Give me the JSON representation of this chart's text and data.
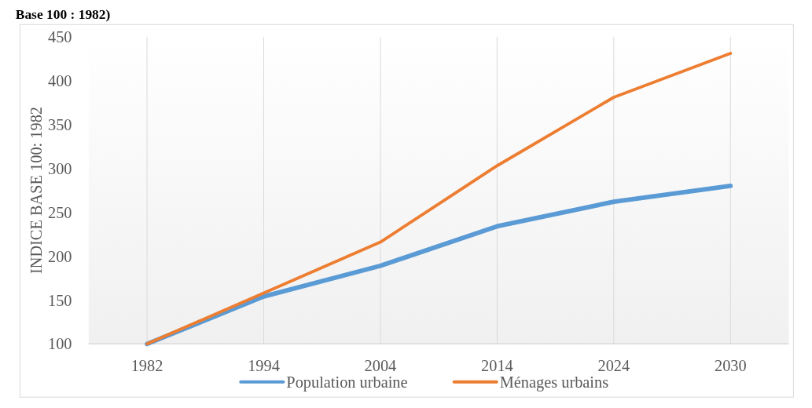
{
  "chart_data": {
    "type": "line",
    "title": "Base 100 : 1982)",
    "ylabel": "INDICE BASE 100: 1982",
    "categories": [
      "1982",
      "1994",
      "2004",
      "2014",
      "2024",
      "2030"
    ],
    "series": [
      {
        "name": "Population urbaine",
        "color": "#5b9bd5",
        "values": [
          100,
          154,
          189,
          234,
          262,
          280
        ]
      },
      {
        "name": "Ménages urbains",
        "color": "#ed7d31",
        "values": [
          100,
          158,
          216,
          303,
          381,
          431
        ]
      }
    ],
    "ylim": [
      100,
      450
    ],
    "yticks": [
      100,
      150,
      200,
      250,
      300,
      350,
      400,
      450
    ],
    "grid": "x",
    "legend": "bottom",
    "marker": "none",
    "line_style": "solid"
  }
}
